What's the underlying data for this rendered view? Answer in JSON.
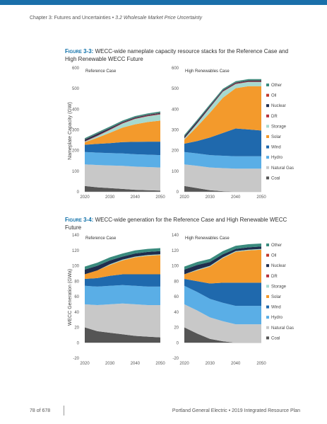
{
  "header": {
    "chapter": "Chapter 3: Futures and Uncertainties",
    "bullet": "•",
    "section": "3.2 Wholesale Market Price Uncertainty",
    "bar_color": "#1a6faa"
  },
  "figures": [
    {
      "label": "Figure 3-3:",
      "caption": "WECC-wide nameplate capacity resource stacks for the Reference Case and High Renewable WECC Future",
      "ylabel": "Nameplate Capacity (GW)"
    },
    {
      "label": "Figure 3-4:",
      "caption": "WECC-wide generation for the Reference Case and High Renewable WECC Future",
      "ylabel": "WECC Generation (GWa)"
    }
  ],
  "legend": [
    {
      "name": "Other",
      "color": "#3a8b7e"
    },
    {
      "name": "Oil",
      "color": "#c0392b"
    },
    {
      "name": "Nuclear",
      "color": "#1f2d4d"
    },
    {
      "name": "DR",
      "color": "#b5313c"
    },
    {
      "name": "Storage",
      "color": "#a6d9cf"
    },
    {
      "name": "Solar",
      "color": "#f39a2c"
    },
    {
      "name": "Wind",
      "color": "#1f69ad"
    },
    {
      "name": "Hydro",
      "color": "#5aaee6"
    },
    {
      "name": "Natural Gas",
      "color": "#c8c8c8"
    },
    {
      "name": "Coal",
      "color": "#555555"
    }
  ],
  "chart_data": [
    {
      "type": "area",
      "title": "Reference Case",
      "ylabel": "Nameplate Capacity (GW)",
      "x": [
        2020,
        2025,
        2030,
        2035,
        2040,
        2045,
        2050
      ],
      "xticks": [
        "2020",
        "2030",
        "2040",
        "2050"
      ],
      "yticks": [
        "0",
        "100",
        "200",
        "300",
        "400",
        "500",
        "600"
      ],
      "ylim": [
        0,
        600
      ],
      "series": [
        {
          "name": "Coal",
          "values": [
            28,
            22,
            18,
            14,
            10,
            8,
            6
          ]
        },
        {
          "name": "Natural Gas",
          "values": [
            105,
            108,
            110,
            112,
            112,
            112,
            112
          ]
        },
        {
          "name": "Hydro",
          "values": [
            60,
            60,
            60,
            60,
            60,
            60,
            60
          ]
        },
        {
          "name": "Wind",
          "values": [
            35,
            42,
            48,
            55,
            60,
            63,
            65
          ]
        },
        {
          "name": "Solar",
          "values": [
            12,
            30,
            50,
            70,
            85,
            95,
            102
          ]
        },
        {
          "name": "Storage",
          "values": [
            3,
            8,
            14,
            20,
            26,
            28,
            30
          ]
        },
        {
          "name": "DR",
          "values": [
            2,
            3,
            3,
            3,
            3,
            3,
            3
          ]
        },
        {
          "name": "Nuclear",
          "values": [
            8,
            8,
            6,
            4,
            4,
            4,
            4
          ]
        },
        {
          "name": "Oil",
          "values": [
            1,
            1,
            1,
            1,
            1,
            1,
            1
          ]
        },
        {
          "name": "Other",
          "values": [
            6,
            6,
            6,
            6,
            6,
            6,
            6
          ]
        }
      ]
    },
    {
      "type": "area",
      "title": "High Renewables Case",
      "x": [
        2020,
        2025,
        2030,
        2035,
        2040,
        2045,
        2050
      ],
      "xticks": [
        "2020",
        "2030",
        "2040",
        "2050"
      ],
      "yticks": [
        "0",
        "100",
        "200",
        "300",
        "400",
        "500",
        "600"
      ],
      "ylim": [
        0,
        600
      ],
      "series": [
        {
          "name": "Coal",
          "values": [
            28,
            18,
            8,
            3,
            0,
            0,
            0
          ]
        },
        {
          "name": "Natural Gas",
          "values": [
            105,
            108,
            110,
            112,
            112,
            112,
            112
          ]
        },
        {
          "name": "Hydro",
          "values": [
            60,
            60,
            60,
            60,
            60,
            60,
            60
          ]
        },
        {
          "name": "Wind",
          "values": [
            40,
            60,
            85,
            110,
            135,
            130,
            125
          ]
        },
        {
          "name": "Solar",
          "values": [
            20,
            70,
            120,
            170,
            195,
            210,
            215
          ]
        },
        {
          "name": "Storage",
          "values": [
            5,
            15,
            25,
            30,
            20,
            20,
            20
          ]
        },
        {
          "name": "DR",
          "values": [
            2,
            3,
            3,
            3,
            3,
            3,
            3
          ]
        },
        {
          "name": "Nuclear",
          "values": [
            8,
            8,
            6,
            4,
            4,
            4,
            4
          ]
        },
        {
          "name": "Oil",
          "values": [
            1,
            1,
            1,
            1,
            1,
            1,
            1
          ]
        },
        {
          "name": "Other",
          "values": [
            6,
            6,
            6,
            6,
            6,
            6,
            6
          ]
        }
      ]
    },
    {
      "type": "area",
      "title": "Reference Case",
      "ylabel": "WECC Generation (GWa)",
      "x": [
        2020,
        2025,
        2030,
        2035,
        2040,
        2045,
        2050
      ],
      "xticks": [
        "2020",
        "2030",
        "2040",
        "2050"
      ],
      "yticks": [
        "-20",
        "0",
        "20",
        "40",
        "60",
        "80",
        "100",
        "120",
        "140"
      ],
      "ylim": [
        -20,
        140
      ],
      "series": [
        {
          "name": "Coal",
          "values": [
            20,
            15,
            13,
            11,
            9,
            8,
            7
          ]
        },
        {
          "name": "Natural Gas",
          "values": [
            30,
            34,
            37,
            40,
            41,
            41,
            42
          ]
        },
        {
          "name": "Hydro",
          "values": [
            24,
            24,
            24,
            24,
            24,
            24,
            24
          ]
        },
        {
          "name": "Wind",
          "values": [
            9,
            11,
            13,
            14,
            15,
            16,
            16
          ]
        },
        {
          "name": "Solar",
          "values": [
            6,
            10,
            14,
            18,
            22,
            24,
            25
          ]
        },
        {
          "name": "Storage",
          "values": [
            0,
            0,
            1,
            1,
            1,
            1,
            1
          ]
        },
        {
          "name": "DR",
          "values": [
            0,
            0,
            0,
            0,
            0,
            0,
            0
          ]
        },
        {
          "name": "Nuclear",
          "values": [
            6,
            6,
            5,
            4,
            4,
            4,
            4
          ]
        },
        {
          "name": "Oil",
          "values": [
            0,
            0,
            0,
            0,
            0,
            0,
            0
          ]
        },
        {
          "name": "Other",
          "values": [
            4,
            4,
            4,
            4,
            4,
            4,
            4
          ]
        }
      ]
    },
    {
      "type": "area",
      "title": "High Renewables Case",
      "x": [
        2020,
        2025,
        2030,
        2035,
        2040,
        2045,
        2050
      ],
      "xticks": [
        "2020",
        "2030",
        "2040",
        "2050"
      ],
      "yticks": [
        "-20",
        "0",
        "20",
        "40",
        "60",
        "80",
        "100",
        "120",
        "140"
      ],
      "ylim": [
        -20,
        140
      ],
      "series": [
        {
          "name": "Coal",
          "values": [
            20,
            12,
            5,
            2,
            0,
            0,
            0
          ]
        },
        {
          "name": "Natural Gas",
          "values": [
            30,
            30,
            28,
            26,
            24,
            24,
            24
          ]
        },
        {
          "name": "Hydro",
          "values": [
            24,
            24,
            24,
            24,
            24,
            24,
            24
          ]
        },
        {
          "name": "Wind",
          "values": [
            9,
            14,
            20,
            26,
            30,
            30,
            30
          ]
        },
        {
          "name": "Solar",
          "values": [
            6,
            14,
            22,
            32,
            40,
            42,
            43
          ]
        },
        {
          "name": "Storage",
          "values": [
            0,
            1,
            1,
            1,
            1,
            1,
            1
          ]
        },
        {
          "name": "DR",
          "values": [
            0,
            0,
            0,
            0,
            0,
            0,
            0
          ]
        },
        {
          "name": "Nuclear",
          "values": [
            6,
            6,
            5,
            4,
            3,
            3,
            3
          ]
        },
        {
          "name": "Oil",
          "values": [
            0,
            0,
            0,
            0,
            0,
            0,
            0
          ]
        },
        {
          "name": "Other",
          "values": [
            4,
            4,
            4,
            4,
            4,
            4,
            4
          ]
        }
      ]
    }
  ],
  "footer": {
    "page": "78 of 678",
    "company": "Portland General Electric",
    "bullet": "•",
    "plan": "2019 Integrated Resource Plan"
  }
}
